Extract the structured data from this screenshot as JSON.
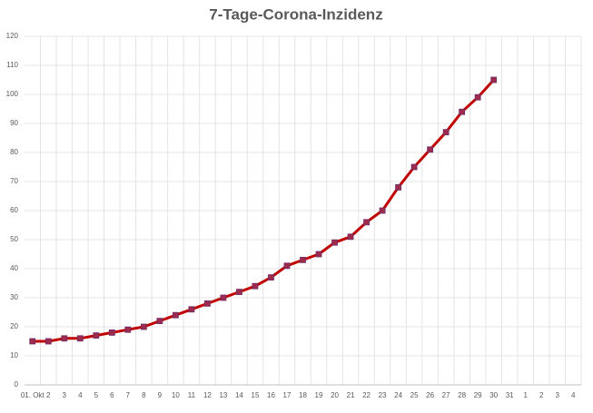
{
  "chart_data": {
    "type": "line",
    "title": "7-Tage-Corona-Inzidenz",
    "categories": [
      "01. Okt",
      "2",
      "3",
      "4",
      "5",
      "6",
      "7",
      "8",
      "9",
      "10",
      "11",
      "12",
      "13",
      "14",
      "15",
      "16",
      "17",
      "18",
      "19",
      "20",
      "21",
      "22",
      "23",
      "24",
      "25",
      "26",
      "27",
      "28",
      "29",
      "30",
      "31",
      "1",
      "2",
      "3",
      "4"
    ],
    "series": [
      {
        "color": "#c00000",
        "marker_color": "#9e2a4c",
        "values": [
          15,
          15,
          16,
          16,
          17,
          18,
          19,
          20,
          22,
          24,
          26,
          28,
          30,
          32,
          34,
          37,
          41,
          43,
          45,
          49,
          51,
          56,
          60,
          68,
          75,
          81,
          87,
          94,
          99,
          105,
          null,
          null,
          null,
          null,
          null
        ]
      }
    ],
    "ylim": [
      0,
      120
    ],
    "yticks": [
      0,
      10,
      20,
      30,
      40,
      50,
      60,
      70,
      80,
      90,
      100,
      110,
      120
    ],
    "grid": true
  }
}
